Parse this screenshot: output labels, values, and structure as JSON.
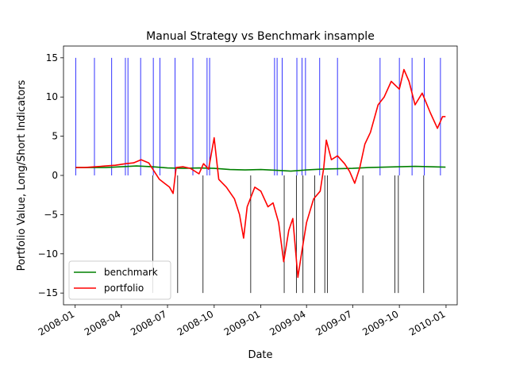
{
  "chart_data": {
    "type": "line",
    "title": "Manual Strategy vs Benchmark insample",
    "xlabel": "Date",
    "ylabel": "Portfolio Value, Long/Short Indicators",
    "x_range": [
      "2007-12-09",
      "2010-01-23"
    ],
    "ylim": [
      -16.5,
      16.5
    ],
    "x_ticks": [
      {
        "date": "2008-01-01",
        "label": "2008-01"
      },
      {
        "date": "2008-04-01",
        "label": "2008-04"
      },
      {
        "date": "2008-07-01",
        "label": "2008-07"
      },
      {
        "date": "2008-10-01",
        "label": "2008-10"
      },
      {
        "date": "2009-01-01",
        "label": "2009-01"
      },
      {
        "date": "2009-04-01",
        "label": "2009-04"
      },
      {
        "date": "2009-07-01",
        "label": "2009-07"
      },
      {
        "date": "2009-10-01",
        "label": "2009-10"
      },
      {
        "date": "2010-01-01",
        "label": "2010-01"
      }
    ],
    "y_ticks": [
      -15,
      -10,
      -5,
      0,
      5,
      10,
      15
    ],
    "grid": false,
    "legend_position": "lower-left",
    "series": [
      {
        "name": "benchmark",
        "color": "#008000",
        "points": [
          [
            "2008-01-02",
            1.0
          ],
          [
            "2008-02-01",
            1.0
          ],
          [
            "2008-03-01",
            1.0
          ],
          [
            "2008-04-01",
            1.1
          ],
          [
            "2008-05-01",
            1.2
          ],
          [
            "2008-06-01",
            1.1
          ],
          [
            "2008-07-01",
            0.95
          ],
          [
            "2008-08-01",
            0.9
          ],
          [
            "2008-09-01",
            0.95
          ],
          [
            "2008-10-01",
            0.9
          ],
          [
            "2008-11-01",
            0.75
          ],
          [
            "2008-12-01",
            0.7
          ],
          [
            "2009-01-01",
            0.75
          ],
          [
            "2009-02-01",
            0.65
          ],
          [
            "2009-03-01",
            0.55
          ],
          [
            "2009-04-01",
            0.7
          ],
          [
            "2009-05-01",
            0.8
          ],
          [
            "2009-06-01",
            0.85
          ],
          [
            "2009-07-01",
            0.9
          ],
          [
            "2009-08-01",
            1.0
          ],
          [
            "2009-09-01",
            1.05
          ],
          [
            "2009-10-01",
            1.1
          ],
          [
            "2009-11-01",
            1.15
          ],
          [
            "2009-12-01",
            1.1
          ],
          [
            "2009-12-31",
            1.05
          ]
        ]
      },
      {
        "name": "portfolio",
        "color": "#ff0000",
        "points": [
          [
            "2008-01-02",
            1.0
          ],
          [
            "2008-01-20",
            1.0
          ],
          [
            "2008-02-10",
            1.1
          ],
          [
            "2008-03-01",
            1.2
          ],
          [
            "2008-03-20",
            1.3
          ],
          [
            "2008-04-10",
            1.5
          ],
          [
            "2008-04-25",
            1.6
          ],
          [
            "2008-05-10",
            2.0
          ],
          [
            "2008-05-25",
            1.6
          ],
          [
            "2008-06-05",
            0.5
          ],
          [
            "2008-06-15",
            -0.5
          ],
          [
            "2008-06-25",
            -1.0
          ],
          [
            "2008-07-05",
            -1.5
          ],
          [
            "2008-07-12",
            -2.3
          ],
          [
            "2008-07-18",
            1.0
          ],
          [
            "2008-08-01",
            1.1
          ],
          [
            "2008-08-15",
            0.9
          ],
          [
            "2008-09-01",
            0.2
          ],
          [
            "2008-09-10",
            1.5
          ],
          [
            "2008-09-20",
            0.8
          ],
          [
            "2008-10-01",
            4.8
          ],
          [
            "2008-10-10",
            -0.5
          ],
          [
            "2008-10-25",
            -1.5
          ],
          [
            "2008-11-10",
            -3.0
          ],
          [
            "2008-11-20",
            -5.0
          ],
          [
            "2008-11-28",
            -8.0
          ],
          [
            "2008-12-05",
            -4.0
          ],
          [
            "2008-12-20",
            -1.5
          ],
          [
            "2009-01-01",
            -2.0
          ],
          [
            "2009-01-15",
            -4.0
          ],
          [
            "2009-01-25",
            -3.5
          ],
          [
            "2009-02-05",
            -6.0
          ],
          [
            "2009-02-15",
            -11.0
          ],
          [
            "2009-02-25",
            -7.0
          ],
          [
            "2009-03-05",
            -5.5
          ],
          [
            "2009-03-15",
            -13.0
          ],
          [
            "2009-03-22",
            -10.0
          ],
          [
            "2009-04-01",
            -6.0
          ],
          [
            "2009-04-15",
            -3.0
          ],
          [
            "2009-04-28",
            -2.0
          ],
          [
            "2009-05-05",
            1.0
          ],
          [
            "2009-05-10",
            4.5
          ],
          [
            "2009-05-20",
            2.0
          ],
          [
            "2009-06-01",
            2.5
          ],
          [
            "2009-06-15",
            1.5
          ],
          [
            "2009-06-25",
            0.5
          ],
          [
            "2009-07-05",
            -1.0
          ],
          [
            "2009-07-15",
            1.0
          ],
          [
            "2009-07-25",
            4.0
          ],
          [
            "2009-08-05",
            5.5
          ],
          [
            "2009-08-20",
            9.0
          ],
          [
            "2009-09-01",
            10.0
          ],
          [
            "2009-09-15",
            12.0
          ],
          [
            "2009-10-01",
            11.0
          ],
          [
            "2009-10-10",
            13.5
          ],
          [
            "2009-10-20",
            12.0
          ],
          [
            "2009-11-01",
            9.0
          ],
          [
            "2009-11-15",
            10.5
          ],
          [
            "2009-12-01",
            8.0
          ],
          [
            "2009-12-15",
            6.0
          ],
          [
            "2009-12-25",
            7.5
          ],
          [
            "2009-12-31",
            7.5
          ]
        ]
      }
    ],
    "indicators": {
      "long": {
        "color": "#0000ff",
        "value": 15,
        "dates": [
          "2008-01-02",
          "2008-02-08",
          "2008-03-13",
          "2008-04-09",
          "2008-04-14",
          "2008-05-09",
          "2008-06-03",
          "2008-06-16",
          "2008-07-16",
          "2008-08-20",
          "2008-09-17",
          "2008-09-22",
          "2009-01-28",
          "2009-02-02",
          "2009-02-12",
          "2009-03-13",
          "2009-03-23",
          "2009-03-30",
          "2009-04-27",
          "2009-06-01",
          "2009-08-24",
          "2009-10-01",
          "2009-10-26",
          "2009-11-19",
          "2009-12-21"
        ]
      },
      "short": {
        "color": "#000000",
        "value": -15,
        "dates": [
          "2008-06-02",
          "2008-07-21",
          "2008-09-09",
          "2008-12-12",
          "2009-02-16",
          "2009-03-12",
          "2009-03-25",
          "2009-04-17",
          "2009-05-07",
          "2009-05-12",
          "2009-07-21",
          "2009-09-22",
          "2009-09-29",
          "2009-11-18"
        ]
      }
    }
  }
}
